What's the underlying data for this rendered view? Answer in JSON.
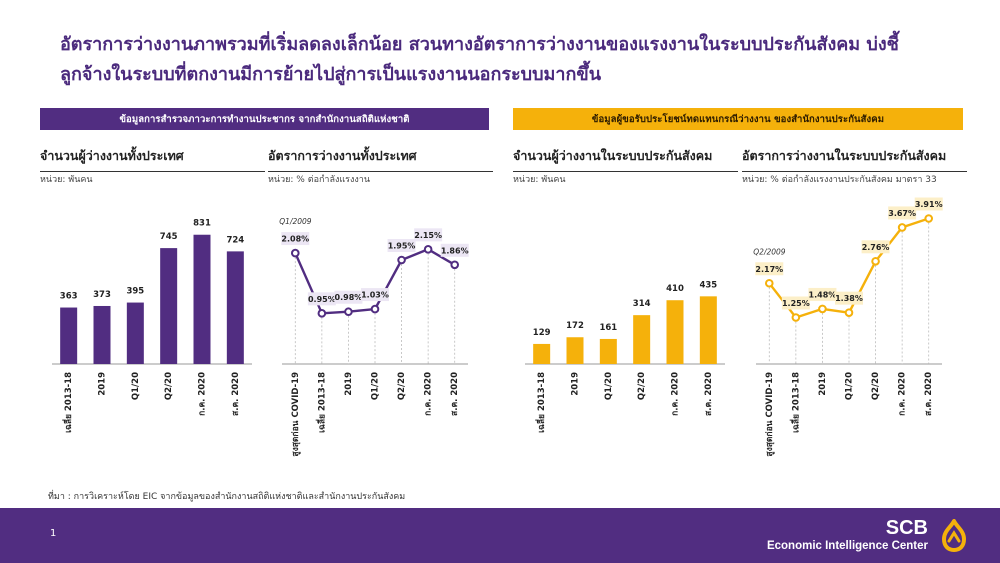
{
  "page": {
    "title_line1": "อัตราการว่างงานภาพรวมที่เริ่มลดลงเล็กน้อย สวนทางอัตราการว่างงานของแรงงานในระบบประกันสังคม บ่งชี้",
    "title_line2": "ลูกจ้างในระบบที่ตกงานมีการย้ายไปสู่การเป็นแรงงานนอกระบบมากขึ้น",
    "banner_left": "ข้อมูลการสำรวจภาวะการทำงานประชากร  จากสำนักงานสถิติแห่งชาติ",
    "banner_right": "ข้อมูลผู้ขอรับประโยชน์ทดแทนกรณีว่างงาน  ของสำนักงานประกันสังคม",
    "source": "ที่มา : การวิเคราะห์โดย EIC จากข้อมูลของสำนักงานสถิติแห่งชาติและสำนักงานประกันสังคม",
    "page_number": "1",
    "brand_name": "SCB",
    "brand_sub": "Economic Intelligence Center"
  },
  "colors": {
    "purple": "#512d81",
    "gold": "#f5b10b",
    "title_purple": "#4b2a7d",
    "label_bg_purple": "#ece6f4",
    "label_bg_gold": "#fcefc8"
  },
  "chart_data": [
    {
      "type": "bar",
      "title": "จำนวนผู้ว่างงานทั้งประเทศ",
      "unit": "หน่วย: พันคน",
      "categories": [
        "เฉลี่ย 2013-18",
        "2019",
        "Q1/20",
        "Q2/20",
        "ก.ค. 2020",
        "ส.ค. 2020"
      ],
      "values": [
        363,
        373,
        395,
        745,
        831,
        724
      ],
      "ylim": [
        0,
        900
      ],
      "color": "purple"
    },
    {
      "type": "line",
      "title": "อัตราการว่างงานทั้งประเทศ",
      "unit": "หน่วย: % ต่อกำลังแรงงาน",
      "annotation": "Q1/2009",
      "categories": [
        "สูงสุดก่อน COVID-19",
        "เฉลี่ย 2013-18",
        "2019",
        "Q1/20",
        "Q2/20",
        "ก.ค. 2020",
        "ส.ค. 2020"
      ],
      "values": [
        2.08,
        0.95,
        0.98,
        1.03,
        1.95,
        2.15,
        1.86
      ],
      "labels": [
        "2.08%",
        "0.95%",
        "0.98%",
        "1.03%",
        "1.95%",
        "2.15%",
        "1.86%"
      ],
      "ylim": [
        0,
        3
      ],
      "color": "purple"
    },
    {
      "type": "bar",
      "title": "จำนวนผู้ว่างงานในระบบประกันสังคม",
      "unit": "หน่วย: พันคน",
      "categories": [
        "เฉลี่ย 2013-18",
        "2019",
        "Q1/20",
        "Q2/20",
        "ก.ค. 2020",
        "ส.ค. 2020"
      ],
      "values": [
        129,
        172,
        161,
        314,
        410,
        435
      ],
      "ylim": [
        0,
        900
      ],
      "color": "gold"
    },
    {
      "type": "line",
      "title": "อัตราการว่างงานในระบบประกันสังคม",
      "unit": "หน่วย: % ต่อกำลังแรงงานประกันสังคม มาตรา 33",
      "annotation": "Q2/2009",
      "categories": [
        "สูงสุดก่อน COVID-19",
        "เฉลี่ย 2013-18",
        "2019",
        "Q1/20",
        "Q2/20",
        "ก.ค. 2020",
        "ส.ค. 2020"
      ],
      "values": [
        2.17,
        1.25,
        1.48,
        1.38,
        2.76,
        3.67,
        3.91
      ],
      "labels": [
        "2.17%",
        "1.25%",
        "1.48%",
        "1.38%",
        "2.76%",
        "3.67%",
        "3.91%"
      ],
      "ylim": [
        0,
        4.3
      ],
      "color": "gold"
    }
  ]
}
